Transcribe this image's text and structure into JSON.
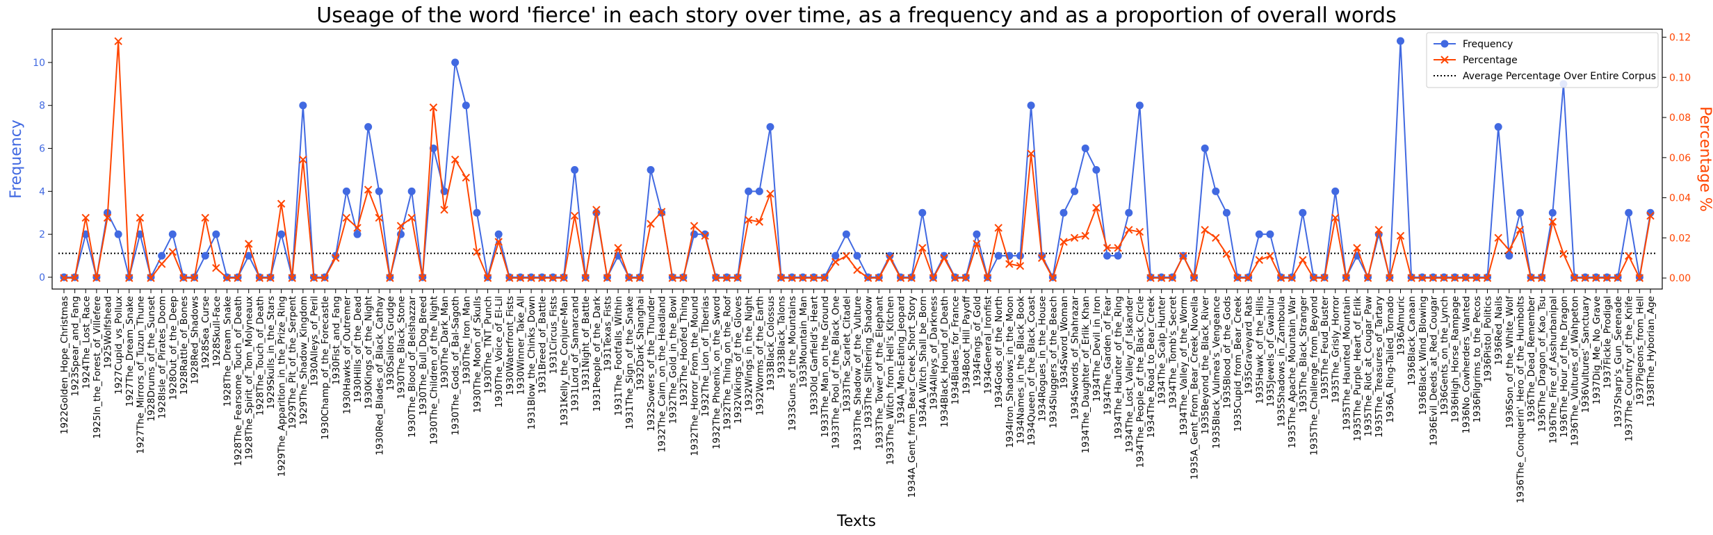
{
  "chart_data": {
    "type": "line",
    "title": "Useage of the word 'fierce' in each story over time, as a frequency and as a proportion of overall words",
    "x_label": "Texts",
    "y_label": "Frequency",
    "y2_label": "Percentage %",
    "legend": "upper right",
    "categories": [
      "1922Golden_Hope_Christmas",
      "1923Spear_and_Fang",
      "1924The_Lost_Race",
      "1925In_the_Forest_of_Villefere",
      "1925Wolfshead",
      "1927Cupid_vs_Pollux",
      "1927The_Dream_Snake",
      "1927The_Mirrors_of_Tuzun_Thune",
      "1928Drums_of_the_Sunset",
      "1928Isle_of_Pirates_Doom",
      "1928Out_of_the_Deep",
      "1928Rattle_of_Bones",
      "1928Red_Shadows",
      "1928Sea_Curse",
      "1928Skull-Face",
      "1928The_Dream_Snake",
      "1928The_Fearsome_Touch_of_Death",
      "1928The_Spirit_of_Tom_Molyneaux",
      "1928The_Touch_of_Death",
      "1929Skulls_in_the_Stars",
      "1929The_Apparition_in_the_Prize_Ring",
      "1929The_Pit_of_the_Serpent",
      "1929The_Shadow_Kingdom",
      "1930Alleys_of_Peril",
      "1930Champ_of_the_Forecastle",
      "1930Fist_and_Fang",
      "1930Hawks_of_Outremer",
      "1930Hills_of_the_Dead",
      "1930Kings_of_the_Night",
      "1930Red_Blades_of_Black_Cathay",
      "1930Sailors_Grudge",
      "1930The_Black_Stone",
      "1930The_Blood_of_Belshazzar",
      "1930The_Bull_Dog_Breed",
      "1930The_Children_of_the_Night",
      "1930The_Dark_Man",
      "1930The_Gods_of_Bal-Sagoth",
      "1930The_Iron_Man",
      "1930The_Moon_of_Skulls",
      "1930The_TNT_Punch",
      "1930The_Voice_of_El-Lil",
      "1930Waterfront_Fists",
      "1930Winner_Take_All",
      "1931Blow_the_Chinks_Down",
      "1931Breed_of_Battle",
      "1931Circus_Fists",
      "1931Kelly_the_Conjure-Man",
      "1931Lord_of_Samarcand",
      "1931Night_of_Battle",
      "1931People_of_the_Dark",
      "1931Texas_Fists",
      "1931The_Footfalls_Within",
      "1931The_Sign_of_the_Snake",
      "1932Dark_Shanghai",
      "1932Sowers_of_the_Thunder",
      "1932The_Cairn_on_the_Headland",
      "1932The_Gold_in_the_Bowl",
      "1932The_Hoofed_Thing",
      "1932The_Horror_From_the_Mound",
      "1932The_Lion_of_Tiberias",
      "1932The_Phoenix_on_the_Sword",
      "1932The_Thing_on_the_Roof",
      "1932Vikings_of_the_Gloves",
      "1932Wings_in_the_Night",
      "1932Worms_of_the_Earth",
      "1933Black_Colossus",
      "1933Black_Talons",
      "1933Guns_of_the_Mountains",
      "1933Mountain_Man",
      "1933Old_Garfield's_Heart",
      "1933The_Man_on_the_Ground",
      "1933The_Pool_of_the_Black_One",
      "1933The_Scarlet_Citadel",
      "1933The_Shadow_of_the_Vulture",
      "1933The_Slithering_Shadow",
      "1933The_Tower_of_the_Elephant",
      "1933The_Witch_from_Hell's_Kitchen",
      "1934A_Man-Eating_Jeopard",
      "1934A_Gent_from_Bear_Creek_Short_Story",
      "1934A_Witch_Shall_be_Born",
      "1934Alleys_of_Darkness",
      "1934Black_Hound_of_Death",
      "1934Blades_for_France",
      "1934Boot_Hill_Payoff",
      "1934Fangs_of_Gold",
      "1934General_Ironfist",
      "1934Gods_of_the_North",
      "1934Iron_Shadows_in_the_Moon",
      "1934Names_in_the_Black_Book",
      "1934Queen_of_the_Black_Coast",
      "1934Rogues_in_the_House",
      "1934Sluggers_of_the_Beach",
      "1934Sword_Woman",
      "1934Swords_of_Shahrazar",
      "1934The_Daughter_of_Erlik_Khan",
      "1934The_Devil_in_Iron",
      "1934The_Garden_of_Fear",
      "1934The_Haunter_of_the_Ring",
      "1934The_Lost_Valley_of_Iskander",
      "1934The_People_of_the_Black_Circle",
      "1934The_Road_to_Bear_Creek",
      "1934The_Scalp_Hunter",
      "1934The_Tomb's_Secret",
      "1934The_Valley_of_the_Worm",
      "1935A_Gent_From_Bear_Creek_Novella",
      "1935Beyond_the_Black_River",
      "1935Black_Vulmea's_Vengeance",
      "1935Blood_of_the_Gods",
      "1935Cupid_from_Bear_Creek",
      "1935Graveyard_Rats",
      "1935Hawk_of_the_Hills",
      "1935Jewels_of_Gwahlur",
      "1935Shadows_in_Zamboula",
      "1935The_Apache_Mountain_War",
      "1935The_Black_Stranger",
      "1935The_Challenge_from_Beyond",
      "1935The_Feud_Buster",
      "1935The_Grisly_Horror",
      "1935The_Haunted_Mountain",
      "1935The_Purple_Heart_of_Erlik",
      "1935The_Riot_at_Cougar_Paw",
      "1935The_Treasures_of_Tartary",
      "1936A_Ring-Tailed_Tornado",
      "1936Almuric",
      "1936Black_Canaan",
      "1936Black_Wind_Blowing",
      "1936Evil_Deeds_at_Red_Cougar",
      "1936Gents_on_the_Lynch",
      "1936High_Horse_Rampage",
      "1936No_Cowherders_Wanted",
      "1936Pilgrims_to_the_Pecos",
      "1936Pistol_Politics",
      "1936Red_Nails",
      "1936Son_of_the_White_Wolf",
      "1936The_Conquerin'_Hero_of_the_Humbolts",
      "1936The_Dead_Remember",
      "1936The_Dragon_of_Kao_Tsu",
      "1936The_Fire_of_Asshurbanipal",
      "1936The_Hour_of_the_Dragon",
      "1936The_Vultures_of_Wahpeton",
      "1936Vultures'_Sanctuary",
      "1937Dig_Me_No_Grave",
      "1937Fickle_Prodigal",
      "1937Sharp's_Gun_Serenade",
      "1937The_Country_of_the_Knife",
      "1937Pigeons_from_Hell",
      "1938The_Hyborian_Age"
    ],
    "series": [
      {
        "name": "Frequency",
        "color": "#4169e1",
        "marker": "circle",
        "values": [
          0,
          0,
          2,
          0,
          3,
          2,
          0,
          2,
          0,
          1,
          2,
          0,
          0,
          1,
          2,
          0,
          0,
          1,
          0,
          0,
          2,
          0,
          8,
          0,
          0,
          1,
          4,
          2,
          7,
          4,
          0,
          2,
          4,
          0,
          6,
          4,
          10,
          8,
          3,
          0,
          2,
          0,
          0,
          0,
          0,
          0,
          0,
          5,
          0,
          3,
          0,
          1,
          0,
          0,
          5,
          3,
          0,
          0,
          2,
          2,
          0,
          0,
          0,
          4,
          4,
          7,
          0,
          0,
          0,
          0,
          0,
          1,
          2,
          1,
          0,
          0,
          1,
          0,
          0,
          3,
          0,
          1,
          0,
          0,
          2,
          0,
          1,
          1,
          1,
          8,
          1,
          0,
          3,
          4,
          6,
          5,
          1,
          1,
          3,
          8,
          0,
          0,
          0,
          1,
          0,
          6,
          4,
          3,
          0,
          0,
          2,
          2,
          0,
          0,
          3,
          0,
          0,
          4,
          0,
          1,
          0,
          2,
          0,
          11,
          0,
          0,
          0,
          0,
          0,
          0,
          0,
          0,
          7,
          1,
          3,
          0,
          0,
          3,
          9,
          0,
          0,
          0,
          0,
          0,
          3,
          0,
          3
        ]
      },
      {
        "name": "Percentage",
        "color": "#ff4500",
        "marker": "x",
        "axis": "y2",
        "values": [
          0,
          0,
          0.03,
          0,
          0.03,
          0.118,
          0,
          0.03,
          0,
          0.007,
          0.013,
          0,
          0,
          0.03,
          0.005,
          0,
          0,
          0.017,
          0,
          0,
          0.037,
          0,
          0.059,
          0,
          0,
          0.01,
          0.03,
          0.025,
          0.044,
          0.03,
          0,
          0.026,
          0.03,
          0,
          0.085,
          0.034,
          0.059,
          0.05,
          0.013,
          0,
          0.018,
          0,
          0,
          0,
          0,
          0,
          0,
          0.031,
          0,
          0.034,
          0,
          0.015,
          0,
          0,
          0.027,
          0.033,
          0,
          0,
          0.026,
          0.021,
          0,
          0,
          0,
          0.029,
          0.028,
          0.042,
          0,
          0,
          0,
          0,
          0,
          0.008,
          0.011,
          0.004,
          0,
          0,
          0.01,
          0,
          0,
          0.015,
          0,
          0.01,
          0,
          0,
          0.017,
          0,
          0.025,
          0.007,
          0.006,
          0.062,
          0.01,
          0,
          0.018,
          0.02,
          0.021,
          0.035,
          0.015,
          0.015,
          0.024,
          0.023,
          0,
          0,
          0,
          0.011,
          0,
          0.024,
          0.02,
          0.012,
          0,
          0,
          0.009,
          0.011,
          0,
          0,
          0.009,
          0,
          0,
          0.03,
          0,
          0.015,
          0,
          0.024,
          0,
          0.021,
          0,
          0,
          0,
          0,
          0,
          0,
          0,
          0,
          0.02,
          0.014,
          0.024,
          0,
          0,
          0.028,
          0.012,
          0,
          0,
          0,
          0,
          0,
          0.011,
          0,
          0.031
        ]
      }
    ],
    "reference_line": {
      "name": "Average Percentage Over Entire Corpus",
      "value": 0.0123,
      "axis": "y2",
      "color": "#000000",
      "style": "dotted"
    },
    "ylim": [
      -0.55,
      11.55
    ],
    "yticks": [
      0,
      2,
      4,
      6,
      8,
      10
    ],
    "y2lim": [
      -0.0055,
      0.124
    ],
    "y2ticks": [
      {
        "value": 0,
        "label": "0.00"
      },
      {
        "value": 0.02,
        "label": "0.02"
      },
      {
        "value": 0.04,
        "label": "0.04"
      },
      {
        "value": 0.06,
        "label": "0.06"
      },
      {
        "value": 0.08,
        "label": "0.08"
      },
      {
        "value": 0.1,
        "label": "0.10"
      },
      {
        "value": 0.12,
        "label": "0.12"
      }
    ]
  }
}
